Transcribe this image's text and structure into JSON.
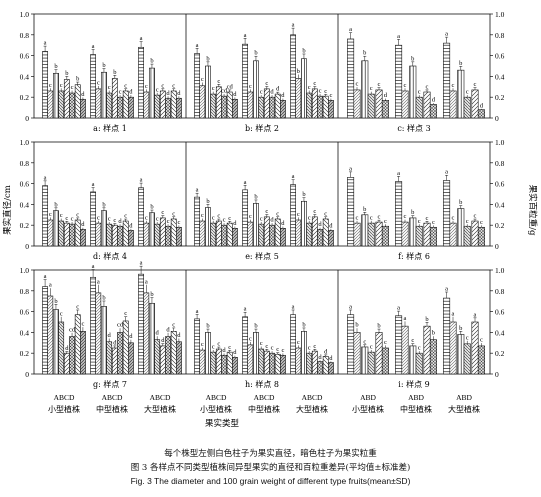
{
  "figure": {
    "axis_left_label": "果实直径/cm",
    "axis_right_label": "果实百粒重/g",
    "x_axis_title": "果实类型",
    "caption_note": "每个株型左侧白色柱子为果实直径，暗色柱子为果实粒重",
    "caption_cn": "图 3   各样点不同类型植株间异型果实的直径和百粒重差异(平均值±标准差)",
    "caption_en": "Fig. 3  The diameter and 100 grain weight of different type fruits(mean±SD)",
    "group_names": [
      "小型植株",
      "中型植株",
      "大型植株"
    ],
    "ticks": [
      "0",
      "0.2",
      "0.4",
      "0.6",
      "0.8",
      "1.0"
    ],
    "colors": {
      "axis": "#111111",
      "bar_fill": "#ffffff",
      "dark_bar": "#bdbdbd"
    }
  },
  "chart_data": [
    {
      "type": "bar",
      "title": "a: 样点 1",
      "ylim": [
        0,
        1
      ],
      "categories_per_group": "ABCD",
      "groups": [
        {
          "name": "小型植株",
          "diameter": [
            0.64,
            0.43,
            0.37,
            0.32
          ],
          "weight": [
            0.26,
            0.26,
            0.24,
            0.18
          ],
          "diameter_letters": [
            "a",
            "b",
            "b",
            "b"
          ],
          "weight_letters": [
            "c",
            "c",
            "c",
            "d"
          ]
        },
        {
          "name": "中型植株",
          "diameter": [
            0.61,
            0.44,
            0.38,
            0.26
          ],
          "weight": [
            0.28,
            0.24,
            0.2,
            0.2
          ],
          "diameter_letters": [
            "a",
            "b",
            "b",
            "c"
          ],
          "weight_letters": [
            "c",
            "c",
            "c",
            "d"
          ]
        },
        {
          "name": "大型植株",
          "diameter": [
            0.68,
            0.48,
            0.26,
            0.26
          ],
          "weight": [
            0.25,
            0.22,
            0.19,
            0.19
          ],
          "diameter_letters": [
            "a",
            "b",
            "c",
            "c"
          ],
          "weight_letters": [
            "c",
            "c",
            "d",
            "d"
          ]
        }
      ]
    },
    {
      "type": "bar",
      "title": "b: 样点 2",
      "ylim": [
        0,
        1
      ],
      "categories_per_group": "ABCD",
      "groups": [
        {
          "name": "小型植株",
          "diameter": [
            0.62,
            0.5,
            0.3,
            0.25
          ],
          "weight": [
            0.31,
            0.23,
            0.21,
            0.18
          ],
          "diameter_letters": [
            "a",
            "b",
            "c",
            "cd"
          ],
          "weight_letters": [
            "c",
            "c",
            "cd",
            "d"
          ]
        },
        {
          "name": "中型植株",
          "diameter": [
            0.71,
            0.55,
            0.28,
            0.23
          ],
          "weight": [
            0.25,
            0.2,
            0.2,
            0.17
          ],
          "diameter_letters": [
            "a",
            "b",
            "c",
            "d"
          ],
          "weight_letters": [
            "c",
            "c",
            "d",
            "d"
          ]
        },
        {
          "name": "大型植株",
          "diameter": [
            0.8,
            0.57,
            0.28,
            0.21
          ],
          "weight": [
            0.38,
            0.24,
            0.21,
            0.17
          ],
          "diameter_letters": [
            "a",
            "b",
            "c",
            "c"
          ],
          "weight_letters": [
            "b",
            "c",
            "c",
            "c"
          ]
        }
      ]
    },
    {
      "type": "bar",
      "title": "c: 样点 3",
      "ylim": [
        0,
        1
      ],
      "categories_per_group": "ABD",
      "groups": [
        {
          "name": "小型植株",
          "diameter": [
            0.76,
            0.55,
            0.27
          ],
          "weight": [
            0.27,
            0.23,
            0.17
          ],
          "diameter_letters": [
            "a",
            "b",
            "c"
          ],
          "weight_letters": [
            "c",
            "c",
            "d"
          ]
        },
        {
          "name": "中型植株",
          "diameter": [
            0.7,
            0.5,
            0.25
          ],
          "weight": [
            0.26,
            0.2,
            0.13
          ],
          "diameter_letters": [
            "a",
            "b",
            "c"
          ],
          "weight_letters": [
            "c",
            "c",
            "d"
          ]
        },
        {
          "name": "大型植株",
          "diameter": [
            0.72,
            0.46,
            0.27
          ],
          "weight": [
            0.26,
            0.2,
            0.08
          ],
          "diameter_letters": [
            "a",
            "b",
            "c"
          ],
          "weight_letters": [
            "c",
            "c",
            "d"
          ]
        }
      ]
    },
    {
      "type": "bar",
      "title": "d: 样点 4",
      "ylim": [
        0,
        1
      ],
      "categories_per_group": "ABCD",
      "groups": [
        {
          "name": "小型植株",
          "diameter": [
            0.58,
            0.34,
            0.22,
            0.25
          ],
          "weight": [
            0.25,
            0.24,
            0.21,
            0.16
          ],
          "diameter_letters": [
            "a",
            "b",
            "c",
            "c"
          ],
          "weight_letters": [
            "c",
            "c",
            "c",
            "d"
          ]
        },
        {
          "name": "中型植株",
          "diameter": [
            0.52,
            0.34,
            0.2,
            0.24
          ],
          "weight": [
            0.22,
            0.21,
            0.19,
            0.15
          ],
          "diameter_letters": [
            "a",
            "b",
            "c",
            "c"
          ],
          "weight_letters": [
            "c",
            "c",
            "d",
            "d"
          ]
        },
        {
          "name": "大型植株",
          "diameter": [
            0.56,
            0.32,
            0.27,
            0.26
          ],
          "weight": [
            0.22,
            0.21,
            0.19,
            0.18
          ],
          "diameter_letters": [
            "a",
            "b",
            "c",
            "c"
          ],
          "weight_letters": [
            "c",
            "c",
            "c",
            "c"
          ]
        }
      ]
    },
    {
      "type": "bar",
      "title": "e: 样点 5",
      "ylim": [
        0,
        1
      ],
      "categories_per_group": "ABCD",
      "groups": [
        {
          "name": "小型植株",
          "diameter": [
            0.47,
            0.37,
            0.24,
            0.22
          ],
          "weight": [
            0.24,
            0.22,
            0.2,
            0.17
          ],
          "diameter_letters": [
            "a",
            "b",
            "c",
            "c"
          ],
          "weight_letters": [
            "c",
            "c",
            "c",
            "d"
          ]
        },
        {
          "name": "中型植株",
          "diameter": [
            0.54,
            0.41,
            0.28,
            0.26
          ],
          "weight": [
            0.23,
            0.21,
            0.2,
            0.17
          ],
          "diameter_letters": [
            "a",
            "b",
            "c",
            "c"
          ],
          "weight_letters": [
            "c",
            "c",
            "d",
            "d"
          ]
        },
        {
          "name": "大型植株",
          "diameter": [
            0.59,
            0.43,
            0.28,
            0.26
          ],
          "weight": [
            0.25,
            0.22,
            0.16,
            0.15
          ],
          "diameter_letters": [
            "a",
            "b",
            "c",
            "c"
          ],
          "weight_letters": [
            "c",
            "c",
            "d",
            "d"
          ]
        }
      ]
    },
    {
      "type": "bar",
      "title": "f: 样点 6",
      "ylim": [
        0,
        1
      ],
      "categories_per_group": "ABD",
      "groups": [
        {
          "name": "小型植株",
          "diameter": [
            0.66,
            0.3,
            0.23
          ],
          "weight": [
            0.22,
            0.22,
            0.19
          ],
          "diameter_letters": [
            "a",
            "b",
            "c"
          ],
          "weight_letters": [
            "c",
            "c",
            "c"
          ]
        },
        {
          "name": "中型植株",
          "diameter": [
            0.62,
            0.27,
            0.22
          ],
          "weight": [
            0.23,
            0.19,
            0.18
          ],
          "diameter_letters": [
            "a",
            "b",
            "c"
          ],
          "weight_letters": [
            "c",
            "c",
            "c"
          ]
        },
        {
          "name": "大型植株",
          "diameter": [
            0.63,
            0.36,
            0.24
          ],
          "weight": [
            0.22,
            0.19,
            0.18
          ],
          "diameter_letters": [
            "a",
            "b",
            "c"
          ],
          "weight_letters": [
            "c",
            "c",
            "c"
          ]
        }
      ]
    },
    {
      "type": "bar",
      "title": "g: 样点 7",
      "ylim": [
        0,
        1
      ],
      "categories_per_group": "ABCD",
      "groups": [
        {
          "name": "小型植株",
          "diameter": [
            0.84,
            0.62,
            0.2,
            0.57
          ],
          "weight": [
            0.75,
            0.5,
            0.36,
            0.41
          ],
          "diameter_letters": [
            "a",
            "b",
            "d",
            "c"
          ],
          "weight_letters": [
            "a",
            "c",
            "cd",
            "c"
          ]
        },
        {
          "name": "中型植株",
          "diameter": [
            0.93,
            0.65,
            0.25,
            0.51
          ],
          "weight": [
            0.78,
            0.31,
            0.4,
            0.3
          ],
          "diameter_letters": [
            "a",
            "b",
            "d",
            "c"
          ],
          "weight_letters": [
            "a",
            "d",
            "cd",
            "d"
          ]
        },
        {
          "name": "大型植株",
          "diameter": [
            0.96,
            0.68,
            0.27,
            0.41
          ],
          "weight": [
            0.78,
            0.33,
            0.36,
            0.31
          ],
          "diameter_letters": [
            "a",
            "b",
            "d",
            "c"
          ],
          "weight_letters": [
            "a",
            "d",
            "d",
            "d"
          ]
        }
      ]
    },
    {
      "type": "bar",
      "title": "h: 样点 8",
      "ylim": [
        0,
        1
      ],
      "categories_per_group": "ABCD",
      "groups": [
        {
          "name": "小型植株",
          "diameter": [
            0.53,
            0.4,
            0.24,
            0.21
          ],
          "weight": [
            0.23,
            0.21,
            0.18,
            0.16
          ],
          "diameter_letters": [
            "a",
            "b",
            "c",
            "c"
          ],
          "weight_letters": [
            "c",
            "c",
            "d",
            "d"
          ]
        },
        {
          "name": "中型植株",
          "diameter": [
            0.55,
            0.4,
            0.22,
            0.19
          ],
          "weight": [
            0.28,
            0.24,
            0.2,
            0.18
          ],
          "diameter_letters": [
            "a",
            "b",
            "c",
            "c"
          ],
          "weight_letters": [
            "c",
            "c",
            "c",
            "c"
          ]
        },
        {
          "name": "大型植株",
          "diameter": [
            0.57,
            0.41,
            0.22,
            0.17
          ],
          "weight": [
            0.25,
            0.2,
            0.12,
            0.11
          ],
          "diameter_letters": [
            "a",
            "b",
            "c",
            "d"
          ],
          "weight_letters": [
            "c",
            "c",
            "d",
            "d"
          ]
        }
      ]
    },
    {
      "type": "bar",
      "title": "i: 样点 9",
      "ylim": [
        0,
        1
      ],
      "categories_per_group": "ABD",
      "groups": [
        {
          "name": "小型植株",
          "diameter": [
            0.57,
            0.26,
            0.4
          ],
          "weight": [
            0.4,
            0.21,
            0.25
          ],
          "diameter_letters": [
            "a",
            "c",
            "b"
          ],
          "weight_letters": [
            "b",
            "c",
            "c"
          ]
        },
        {
          "name": "中型植株",
          "diameter": [
            0.56,
            0.27,
            0.46
          ],
          "weight": [
            0.46,
            0.2,
            0.33
          ],
          "diameter_letters": [
            "a",
            "c",
            "b"
          ],
          "weight_letters": [
            "a",
            "c",
            "b"
          ]
        },
        {
          "name": "大型植株",
          "diameter": [
            0.73,
            0.38,
            0.5
          ],
          "weight": [
            0.5,
            0.29,
            0.27
          ],
          "diameter_letters": [
            "a",
            "b",
            "a"
          ],
          "weight_letters": [
            "a",
            "c",
            "c"
          ]
        }
      ]
    }
  ]
}
